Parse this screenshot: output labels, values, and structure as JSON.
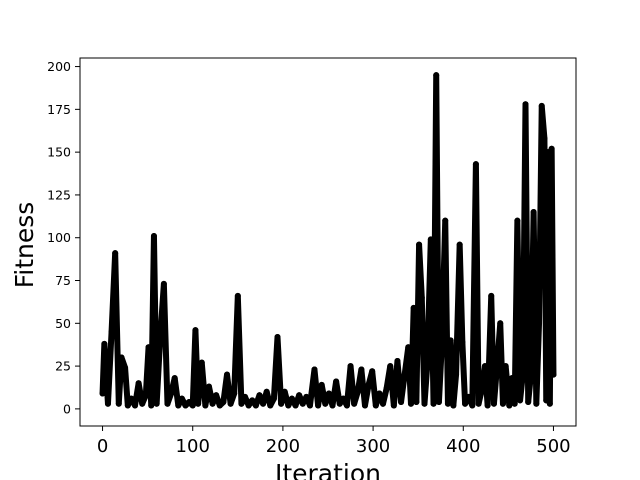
{
  "chart_data": {
    "type": "line",
    "xlabel": "Iteration",
    "ylabel": "Fitness",
    "xlim": [
      -25,
      525
    ],
    "ylim": [
      -10,
      205
    ],
    "xticks": [
      0,
      100,
      200,
      300,
      400,
      500
    ],
    "yticks": [
      0,
      25,
      50,
      75,
      100,
      125,
      150,
      175,
      200
    ],
    "grid": false,
    "series_color": "#000000",
    "peaks": [
      {
        "x": 0,
        "y": 9
      },
      {
        "x": 2,
        "y": 38
      },
      {
        "x": 6,
        "y": 3
      },
      {
        "x": 10,
        "y": 45
      },
      {
        "x": 14,
        "y": 91
      },
      {
        "x": 18,
        "y": 3
      },
      {
        "x": 21,
        "y": 30
      },
      {
        "x": 25,
        "y": 24
      },
      {
        "x": 28,
        "y": 2
      },
      {
        "x": 32,
        "y": 6
      },
      {
        "x": 36,
        "y": 2
      },
      {
        "x": 40,
        "y": 15
      },
      {
        "x": 44,
        "y": 3
      },
      {
        "x": 48,
        "y": 8
      },
      {
        "x": 51,
        "y": 36
      },
      {
        "x": 54,
        "y": 2
      },
      {
        "x": 57,
        "y": 101
      },
      {
        "x": 60,
        "y": 3
      },
      {
        "x": 64,
        "y": 42
      },
      {
        "x": 68,
        "y": 73
      },
      {
        "x": 72,
        "y": 3
      },
      {
        "x": 76,
        "y": 9
      },
      {
        "x": 80,
        "y": 18
      },
      {
        "x": 84,
        "y": 2
      },
      {
        "x": 88,
        "y": 6
      },
      {
        "x": 92,
        "y": 2
      },
      {
        "x": 96,
        "y": 4
      },
      {
        "x": 100,
        "y": 2
      },
      {
        "x": 103,
        "y": 46
      },
      {
        "x": 106,
        "y": 3
      },
      {
        "x": 110,
        "y": 27
      },
      {
        "x": 114,
        "y": 2
      },
      {
        "x": 118,
        "y": 13
      },
      {
        "x": 122,
        "y": 3
      },
      {
        "x": 126,
        "y": 8
      },
      {
        "x": 130,
        "y": 2
      },
      {
        "x": 134,
        "y": 4
      },
      {
        "x": 138,
        "y": 20
      },
      {
        "x": 142,
        "y": 3
      },
      {
        "x": 146,
        "y": 9
      },
      {
        "x": 150,
        "y": 66
      },
      {
        "x": 154,
        "y": 3
      },
      {
        "x": 158,
        "y": 7
      },
      {
        "x": 162,
        "y": 2
      },
      {
        "x": 166,
        "y": 5
      },
      {
        "x": 170,
        "y": 2
      },
      {
        "x": 174,
        "y": 8
      },
      {
        "x": 178,
        "y": 3
      },
      {
        "x": 182,
        "y": 10
      },
      {
        "x": 186,
        "y": 2
      },
      {
        "x": 190,
        "y": 6
      },
      {
        "x": 194,
        "y": 42
      },
      {
        "x": 198,
        "y": 3
      },
      {
        "x": 202,
        "y": 10
      },
      {
        "x": 206,
        "y": 2
      },
      {
        "x": 210,
        "y": 6
      },
      {
        "x": 214,
        "y": 2
      },
      {
        "x": 218,
        "y": 8
      },
      {
        "x": 222,
        "y": 3
      },
      {
        "x": 226,
        "y": 7
      },
      {
        "x": 230,
        "y": 2
      },
      {
        "x": 235,
        "y": 23
      },
      {
        "x": 239,
        "y": 2
      },
      {
        "x": 243,
        "y": 14
      },
      {
        "x": 247,
        "y": 3
      },
      {
        "x": 251,
        "y": 9
      },
      {
        "x": 255,
        "y": 2
      },
      {
        "x": 259,
        "y": 16
      },
      {
        "x": 263,
        "y": 3
      },
      {
        "x": 267,
        "y": 6
      },
      {
        "x": 271,
        "y": 2
      },
      {
        "x": 275,
        "y": 25
      },
      {
        "x": 279,
        "y": 3
      },
      {
        "x": 283,
        "y": 10
      },
      {
        "x": 287,
        "y": 23
      },
      {
        "x": 291,
        "y": 2
      },
      {
        "x": 295,
        "y": 14
      },
      {
        "x": 299,
        "y": 22
      },
      {
        "x": 303,
        "y": 2
      },
      {
        "x": 307,
        "y": 9
      },
      {
        "x": 311,
        "y": 3
      },
      {
        "x": 315,
        "y": 12
      },
      {
        "x": 319,
        "y": 25
      },
      {
        "x": 323,
        "y": 2
      },
      {
        "x": 327,
        "y": 28
      },
      {
        "x": 331,
        "y": 4
      },
      {
        "x": 335,
        "y": 20
      },
      {
        "x": 339,
        "y": 36
      },
      {
        "x": 342,
        "y": 3
      },
      {
        "x": 345,
        "y": 59
      },
      {
        "x": 348,
        "y": 4
      },
      {
        "x": 351,
        "y": 96
      },
      {
        "x": 354,
        "y": 65
      },
      {
        "x": 357,
        "y": 3
      },
      {
        "x": 360,
        "y": 25
      },
      {
        "x": 364,
        "y": 99
      },
      {
        "x": 367,
        "y": 3
      },
      {
        "x": 370,
        "y": 195
      },
      {
        "x": 373,
        "y": 4
      },
      {
        "x": 376,
        "y": 35
      },
      {
        "x": 380,
        "y": 110
      },
      {
        "x": 383,
        "y": 3
      },
      {
        "x": 386,
        "y": 40
      },
      {
        "x": 389,
        "y": 2
      },
      {
        "x": 392,
        "y": 20
      },
      {
        "x": 396,
        "y": 96
      },
      {
        "x": 399,
        "y": 39
      },
      {
        "x": 402,
        "y": 3
      },
      {
        "x": 406,
        "y": 7
      },
      {
        "x": 410,
        "y": 2
      },
      {
        "x": 414,
        "y": 143
      },
      {
        "x": 417,
        "y": 3
      },
      {
        "x": 420,
        "y": 10
      },
      {
        "x": 424,
        "y": 25
      },
      {
        "x": 427,
        "y": 2
      },
      {
        "x": 431,
        "y": 66
      },
      {
        "x": 434,
        "y": 3
      },
      {
        "x": 437,
        "y": 22
      },
      {
        "x": 441,
        "y": 50
      },
      {
        "x": 444,
        "y": 3
      },
      {
        "x": 447,
        "y": 25
      },
      {
        "x": 451,
        "y": 2
      },
      {
        "x": 454,
        "y": 18
      },
      {
        "x": 457,
        "y": 3
      },
      {
        "x": 460,
        "y": 110
      },
      {
        "x": 463,
        "y": 5
      },
      {
        "x": 466,
        "y": 20
      },
      {
        "x": 469,
        "y": 178
      },
      {
        "x": 472,
        "y": 4
      },
      {
        "x": 475,
        "y": 20
      },
      {
        "x": 478,
        "y": 115
      },
      {
        "x": 481,
        "y": 3
      },
      {
        "x": 484,
        "y": 50
      },
      {
        "x": 487,
        "y": 177
      },
      {
        "x": 490,
        "y": 158
      },
      {
        "x": 492,
        "y": 5
      },
      {
        "x": 494,
        "y": 150
      },
      {
        "x": 496,
        "y": 3
      },
      {
        "x": 498,
        "y": 152
      },
      {
        "x": 500,
        "y": 20
      }
    ]
  }
}
